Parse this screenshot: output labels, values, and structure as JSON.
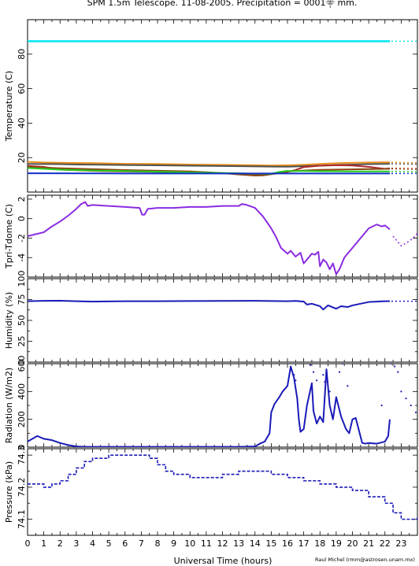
{
  "chart_data": {
    "type": "line",
    "title": "SPM 1.5m Telescope. 11-08-2005. Precipitation = 0001⸎ mm.",
    "xlabel": "Universal Time (hours)",
    "credit": "Raul Michel (rmm@astrosen.unam.mx)",
    "x_ticks": [
      "0",
      "1",
      "2",
      "3",
      "4",
      "5",
      "6",
      "7",
      "8",
      "9",
      "10",
      "11",
      "12",
      "13",
      "14",
      "15",
      "16",
      "17",
      "18",
      "19",
      "20",
      "21",
      "22",
      "23"
    ],
    "xlim": [
      0,
      24
    ],
    "panels": [
      {
        "id": "temperature",
        "ylabel": "Temperature (C)",
        "ylim": [
          0,
          100
        ],
        "y_ticks": [
          "20",
          "40",
          "60",
          "80"
        ],
        "y_tick_values": [
          20,
          40,
          60,
          80
        ],
        "series": [
          {
            "color": "#00e5ee",
            "style": "solid",
            "x": [
              0,
              22.3
            ],
            "y": [
              87.5,
              87.5
            ],
            "ext": {
              "x": [
                22.4,
                24
              ],
              "y": [
                87.5,
                87.5
              ]
            }
          },
          {
            "color": "#e8901c",
            "style": "solid",
            "x": [
              0,
              1,
              2,
              4,
              6,
              8,
              10,
              12,
              14,
              15,
              16,
              17,
              18,
              19,
              20,
              21,
              22.3
            ],
            "y": [
              17.5,
              17.2,
              17,
              16.8,
              16.4,
              16.3,
              16,
              15.8,
              15.6,
              15.4,
              15.5,
              15.8,
              16.3,
              16.7,
              17,
              17.2,
              17.3
            ],
            "ext": {
              "x": [
                22.4,
                24
              ],
              "y": [
                17.3,
                17
              ]
            }
          },
          {
            "color": "#505050",
            "style": "solid",
            "x": [
              0,
              2,
              3,
              4,
              6,
              8,
              10,
              12,
              14,
              15,
              16,
              17,
              19,
              21,
              22.3
            ],
            "y": [
              16.3,
              16.2,
              16,
              15.9,
              15.7,
              15.5,
              15.3,
              15.1,
              14.9,
              14.8,
              14.7,
              15,
              15.7,
              16.2,
              16.4
            ],
            "ext": {
              "x": [
                22.4,
                24
              ],
              "y": [
                16.4,
                16.2
              ]
            }
          },
          {
            "color": "#b0282a",
            "style": "solid",
            "x": [
              0,
              1,
              2,
              4,
              6,
              8,
              10,
              12,
              14,
              15,
              15.8,
              16.5,
              17,
              18,
              19,
              20,
              21,
              22,
              22.3
            ],
            "y": [
              15.2,
              14.6,
              13,
              12.3,
              12,
              11.7,
              11.3,
              10.9,
              10.5,
              10.5,
              11.3,
              12.8,
              14.5,
              15.3,
              15.6,
              15.4,
              14.6,
              13.5,
              13.8
            ],
            "ext": {
              "x": [
                22.4,
                24
              ],
              "y": [
                13.8,
                13.5
              ]
            }
          },
          {
            "color": "#8b4513",
            "style": "solid",
            "x": [
              0,
              2,
              4,
              6,
              8,
              10,
              12,
              13,
              14,
              14.5,
              15.5,
              16,
              17,
              18,
              20,
              22.3
            ],
            "y": [
              14.6,
              13.8,
              13.3,
              12.8,
              12.4,
              12,
              11,
              10.2,
              9.6,
              9.7,
              11,
              12,
              12.5,
              12.9,
              13.2,
              13.5
            ],
            "ext": {
              "x": [
                22.4,
                24
              ],
              "y": [
                13.5,
                13.2
              ]
            }
          },
          {
            "color": "#22cc22",
            "style": "solid",
            "x": [
              0,
              2,
              4,
              6,
              8,
              10,
              12,
              13,
              14,
              15,
              15.5,
              16,
              17,
              18,
              20,
              22.3
            ],
            "y": [
              14,
              13,
              12.5,
              12.2,
              11.8,
              11.4,
              11.1,
              10.9,
              10.7,
              10.6,
              11.7,
              12.3,
              12.2,
              12.1,
              12,
              12
            ],
            "ext": {
              "x": [
                22.4,
                24
              ],
              "y": [
                12,
                11.8
              ]
            }
          },
          {
            "color": "#1030c8",
            "style": "solid",
            "x": [
              0,
              6,
              12,
              18,
              22.3
            ],
            "y": [
              10.9,
              10.8,
              10.8,
              10.8,
              10.8
            ],
            "ext": {
              "x": [
                22.4,
                24
              ],
              "y": [
                10.8,
                10.8
              ]
            }
          }
        ]
      },
      {
        "id": "tpri_tdome",
        "ylabel": "Tpri-Tdome (C)",
        "ylim": [
          -6,
          2.4
        ],
        "y_ticks": [
          "-4",
          "-2",
          "0",
          "2"
        ],
        "y_tick_values": [
          -4,
          -2,
          0,
          2
        ],
        "series": [
          {
            "color": "#8a2be2",
            "style": "solid",
            "x": [
              0,
              0.5,
              1,
              1.5,
              2,
              2.5,
              3,
              3.3,
              3.55,
              3.7,
              4,
              5,
              6,
              6.9,
              7.05,
              7.2,
              7.4,
              8,
              9,
              10,
              11,
              12,
              13,
              13.2,
              13.5,
              14,
              14.5,
              15,
              15.3,
              15.6,
              16,
              16.2,
              16.5,
              16.8,
              17,
              17.2,
              17.5,
              17.7,
              17.9,
              18,
              18.2,
              18.4,
              18.6,
              18.8,
              19,
              19.2,
              19.5,
              20,
              20.5,
              21,
              21.5,
              21.8,
              22,
              22.3
            ],
            "y": [
              -1.8,
              -1.6,
              -1.4,
              -0.8,
              -0.3,
              0.3,
              1,
              1.5,
              1.7,
              1.3,
              1.4,
              1.3,
              1.2,
              1.1,
              0.4,
              0.4,
              1,
              1.1,
              1.1,
              1.2,
              1.2,
              1.3,
              1.3,
              1.5,
              1.4,
              1.1,
              0.2,
              -1,
              -1.9,
              -3,
              -3.6,
              -3.3,
              -3.9,
              -3.5,
              -4.6,
              -4.2,
              -3.6,
              -3.7,
              -3.4,
              -4.9,
              -4.2,
              -4.5,
              -5.2,
              -4.6,
              -5.7,
              -5.2,
              -4,
              -3,
              -2,
              -1,
              -0.6,
              -0.8,
              -0.7,
              -1.1
            ],
            "ext": {
              "x": [
                22.5,
                23,
                23.5,
                23.8,
                24
              ],
              "y": [
                -1.8,
                -2.8,
                -2.3,
                -1.9,
                -1.5
              ]
            }
          }
        ]
      },
      {
        "id": "humidity",
        "ylabel": "Humidity (%)",
        "ylim": [
          0,
          100
        ],
        "y_ticks": [
          "0",
          "25",
          "50",
          "75",
          "100"
        ],
        "y_tick_values": [
          0,
          25,
          50,
          75,
          100
        ],
        "extra_ticks": [
          12.5,
          37.5,
          62.5,
          87.5
        ],
        "series": [
          {
            "color": "#1a1ab8",
            "style": "solid",
            "x": [
              0,
              1,
              2,
              3,
              4,
              6,
              8,
              10,
              12,
              14,
              15,
              16,
              16.5,
              17,
              17.2,
              17.5,
              18,
              18.2,
              18.5,
              19,
              19.3,
              19.7,
              20,
              20.5,
              21,
              22,
              22.3
            ],
            "y": [
              73,
              73.5,
              73.6,
              73,
              72.5,
              73,
              73,
              73.2,
              73.3,
              73.5,
              73.2,
              73,
              73.4,
              72.5,
              69,
              70,
              67,
              63,
              68,
              64,
              67,
              66,
              68,
              70,
              72,
              73,
              73
            ],
            "ext": {
              "x": [
                22.4,
                24
              ],
              "y": [
                73,
                73
              ]
            }
          }
        ]
      },
      {
        "id": "radiation",
        "ylabel": "Radiation (W/m2)",
        "ylim": [
          0,
          600
        ],
        "y_ticks": [
          "0",
          "200",
          "400",
          "600"
        ],
        "y_tick_values": [
          0,
          200,
          400,
          600
        ],
        "extra_ticks": [
          100,
          300,
          500
        ],
        "series": [
          {
            "color": "#1a1ab8",
            "style": "solid",
            "x": [
              0,
              0.3,
              0.6,
              1,
              1.5,
              2,
              2.5,
              3,
              3.5,
              5,
              8,
              10,
              12,
              13,
              14,
              14.3,
              14.6,
              14.9,
              15,
              15.2,
              15.5,
              15.7,
              16,
              16.2,
              16.4,
              16.6,
              16.7,
              16.8,
              17,
              17.2,
              17.5,
              17.6,
              17.8,
              18,
              18.2,
              18.4,
              18.6,
              18.8,
              19,
              19.3,
              19.6,
              19.8,
              20,
              20.2,
              20.4,
              20.6,
              20.8,
              21,
              21.5,
              22,
              22.2,
              22.3
            ],
            "y": [
              40,
              60,
              80,
              60,
              50,
              30,
              15,
              5,
              2,
              2,
              2,
              2,
              2,
              2,
              5,
              25,
              40,
              100,
              250,
              310,
              360,
              400,
              440,
              580,
              500,
              350,
              200,
              110,
              130,
              300,
              460,
              260,
              170,
              220,
              180,
              560,
              300,
              200,
              360,
              220,
              130,
              100,
              200,
              210,
              120,
              30,
              25,
              30,
              25,
              40,
              80,
              200
            ]
          },
          {
            "color": "#1a1ab8",
            "style": "dots",
            "x": [
              16.2,
              16.4,
              16.5,
              17.2,
              17.4,
              17.6,
              17.8,
              18.2,
              18.3,
              18.6,
              19.2,
              19.4,
              19.7,
              21.8,
              22.2,
              22.4,
              22.6,
              22.8,
              23,
              23.3,
              23.6,
              23.9
            ],
            "y": [
              560,
              520,
              480,
              620,
              590,
              540,
              480,
              520,
              470,
              400,
              540,
              600,
              440,
              300,
              620,
              600,
              580,
              540,
              400,
              350,
              300,
              250
            ]
          }
        ]
      },
      {
        "id": "pressure",
        "ylabel": "Pressure (kPa)",
        "ylim": [
          74.05,
          74.32
        ],
        "y_ticks": [
          "74.1",
          "74.2",
          "74.3"
        ],
        "y_tick_values": [
          74.1,
          74.2,
          74.3
        ],
        "extra_ticks": [
          74.15,
          74.25
        ],
        "series": [
          {
            "color": "#1a1ab8",
            "style": "steps",
            "x": [
              0,
              1,
              1.5,
              2,
              2.5,
              3,
              3.5,
              4,
              5,
              7.5,
              8,
              8.5,
              9,
              10,
              12,
              13,
              14,
              15,
              16,
              17,
              18,
              19,
              20,
              21,
              22,
              22.5,
              23,
              24
            ],
            "y": [
              74.21,
              74.2,
              74.21,
              74.22,
              74.24,
              74.26,
              74.28,
              74.29,
              74.3,
              74.29,
              74.27,
              74.25,
              74.24,
              74.23,
              74.24,
              74.25,
              74.25,
              74.24,
              74.23,
              74.22,
              74.21,
              74.2,
              74.19,
              74.17,
              74.15,
              74.12,
              74.1,
              74.11
            ]
          }
        ]
      }
    ]
  }
}
